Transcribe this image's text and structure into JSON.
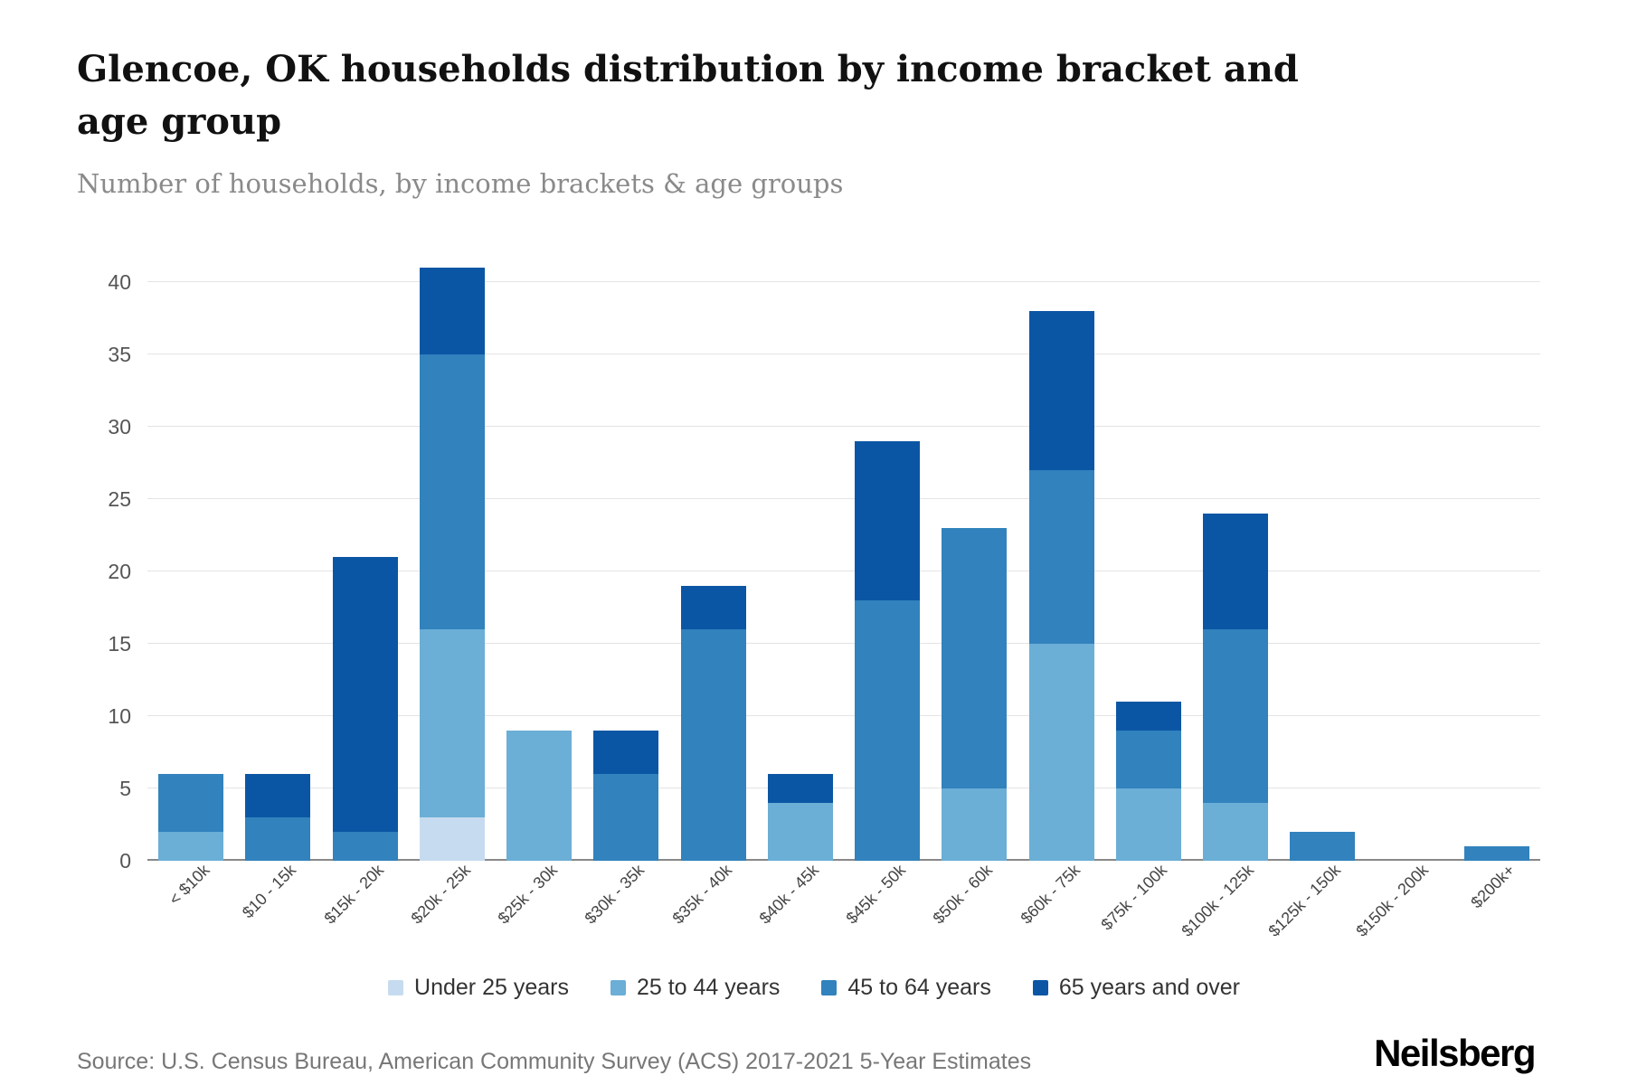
{
  "header": {
    "title": "Glencoe, OK households distribution by income bracket and age group",
    "subtitle": "Number of households, by income brackets & age groups"
  },
  "footer": {
    "source": "Source: U.S. Census Bureau, American Community Survey (ACS) 2017-2021 5-Year Estimates",
    "brand": "Neilsberg"
  },
  "colors": {
    "grid": "#e4e4e4",
    "axis": "#888888",
    "title_text": "#111111",
    "subtitle_text": "#8a8a8a"
  },
  "chart_data": {
    "type": "bar",
    "stacked": true,
    "title": "Glencoe, OK households distribution by income bracket and age group",
    "xlabel": "",
    "ylabel": "Number of households",
    "ylim": [
      0,
      40
    ],
    "yticks": [
      0,
      5,
      10,
      15,
      20,
      25,
      30,
      35,
      40
    ],
    "grid": true,
    "legend_position": "bottom",
    "categories": [
      "< $10k",
      "$10 - 15k",
      "$15k - 20k",
      "$20k - 25k",
      "$25k - 30k",
      "$30k - 35k",
      "$35k - 40k",
      "$40k - 45k",
      "$45k - 50k",
      "$50k - 60k",
      "$60k - 75k",
      "$75k - 100k",
      "$100k - 125k",
      "$125k - 150k",
      "$150k - 200k",
      "$200k+"
    ],
    "series": [
      {
        "name": "Under 25 years",
        "color": "#c6dbef",
        "values": [
          0,
          0,
          0,
          3,
          0,
          0,
          0,
          0,
          0,
          0,
          0,
          0,
          0,
          0,
          0,
          0
        ]
      },
      {
        "name": "25 to 44 years",
        "color": "#6baed6",
        "values": [
          2,
          0,
          0,
          13,
          9,
          0,
          0,
          4,
          0,
          5,
          15,
          5,
          4,
          0,
          0,
          0
        ]
      },
      {
        "name": "45 to 64 years",
        "color": "#3182bd",
        "values": [
          4,
          3,
          2,
          19,
          0,
          6,
          16,
          0,
          18,
          18,
          12,
          4,
          12,
          2,
          0,
          1
        ]
      },
      {
        "name": "65 years and over",
        "color": "#0b56a4",
        "values": [
          0,
          3,
          19,
          6,
          0,
          3,
          3,
          2,
          11,
          0,
          11,
          2,
          8,
          0,
          0,
          0
        ]
      }
    ],
    "totals": [
      6,
      6,
      21,
      41,
      9,
      9,
      19,
      6,
      29,
      23,
      38,
      11,
      24,
      2,
      0,
      1
    ]
  }
}
